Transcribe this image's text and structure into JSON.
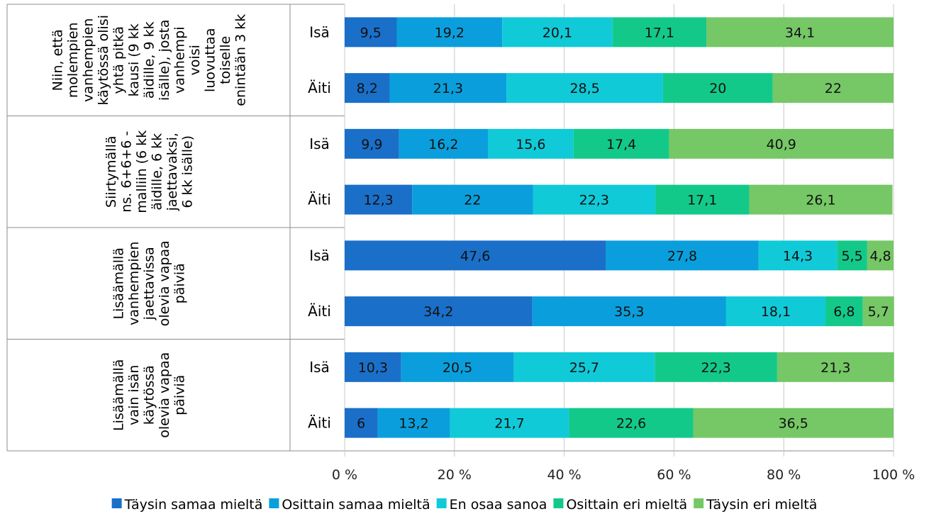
{
  "chart_data": {
    "type": "bar",
    "orientation": "horizontal",
    "stacked": "percent",
    "xlim": [
      0,
      100
    ],
    "x_ticks": [
      "0 %",
      "20 %",
      "40 %",
      "60 %",
      "80 %",
      "100 %"
    ],
    "grid": "vertical",
    "legend": "bottom",
    "groups": [
      {
        "label_lines": [
          "Niin, että",
          "molempien",
          "vanhempien",
          "käytössä olisi",
          "yhtä pitkä",
          "kausi (9 kk",
          "äidille, 9 kk",
          "isälle), josta",
          "vanhempi",
          "voisi",
          "luovuttaa",
          "toiselle",
          "enintään 3 kk"
        ],
        "rows": [
          {
            "label": "Isä",
            "values": [
              9.5,
              19.2,
              20.1,
              17.1,
              34.1
            ],
            "labels": [
              "9,5",
              "19,2",
              "20,1",
              "17,1",
              "34,1"
            ]
          },
          {
            "label": "Äiti",
            "values": [
              8.2,
              21.3,
              28.5,
              20,
              22
            ],
            "labels": [
              "8,2",
              "21,3",
              "28,5",
              "20",
              "22"
            ]
          }
        ]
      },
      {
        "label_lines": [
          "Siirtymällä",
          "ns. 6+6+6 -",
          "malliin (6 kk",
          "äidille, 6 kk",
          "jaettavaksi,",
          "6 kk isälle)"
        ],
        "rows": [
          {
            "label": "Isä",
            "values": [
              9.9,
              16.2,
              15.6,
              17.4,
              40.9
            ],
            "labels": [
              "9,9",
              "16,2",
              "15,6",
              "17,4",
              "40,9"
            ]
          },
          {
            "label": "Äiti",
            "values": [
              12.3,
              22,
              22.3,
              17.1,
              26.1
            ],
            "labels": [
              "12,3",
              "22",
              "22,3",
              "17,1",
              "26,1"
            ]
          }
        ]
      },
      {
        "label_lines": [
          "Lisäämällä",
          "vanhempien",
          "jaettavissa",
          "olevia vapaa",
          "päiviä"
        ],
        "rows": [
          {
            "label": "Isä",
            "values": [
              47.6,
              27.8,
              14.3,
              5.5,
              4.8
            ],
            "labels": [
              "47,6",
              "27,8",
              "14,3",
              "5,5",
              "4,8"
            ]
          },
          {
            "label": "Äiti",
            "values": [
              34.2,
              35.3,
              18.1,
              6.8,
              5.7
            ],
            "labels": [
              "34,2",
              "35,3",
              "18,1",
              "6,8",
              "5,7"
            ]
          }
        ]
      },
      {
        "label_lines": [
          "Lisäämällä",
          "vain isän",
          "käytössä",
          "olevia vapaa",
          "päiviä"
        ],
        "rows": [
          {
            "label": "Isä",
            "values": [
              10.3,
              20.5,
              25.7,
              22.3,
              21.3
            ],
            "labels": [
              "10,3",
              "20,5",
              "25,7",
              "22,3",
              "21,3"
            ]
          },
          {
            "label": "Äiti",
            "values": [
              6,
              13.2,
              21.7,
              22.6,
              36.5
            ],
            "labels": [
              "6",
              "13,2",
              "21,7",
              "22,6",
              "36,5"
            ]
          }
        ]
      }
    ],
    "series": [
      {
        "name": "Täysin samaa mieltä",
        "color": "#1a6fc9"
      },
      {
        "name": "Osittain samaa mieltä",
        "color": "#0a9fdc"
      },
      {
        "name": "En osaa sanoa",
        "color": "#10cad8"
      },
      {
        "name": "Osittain eri mieltä",
        "color": "#13c98a"
      },
      {
        "name": "Täysin eri mieltä",
        "color": "#76c766"
      }
    ]
  }
}
